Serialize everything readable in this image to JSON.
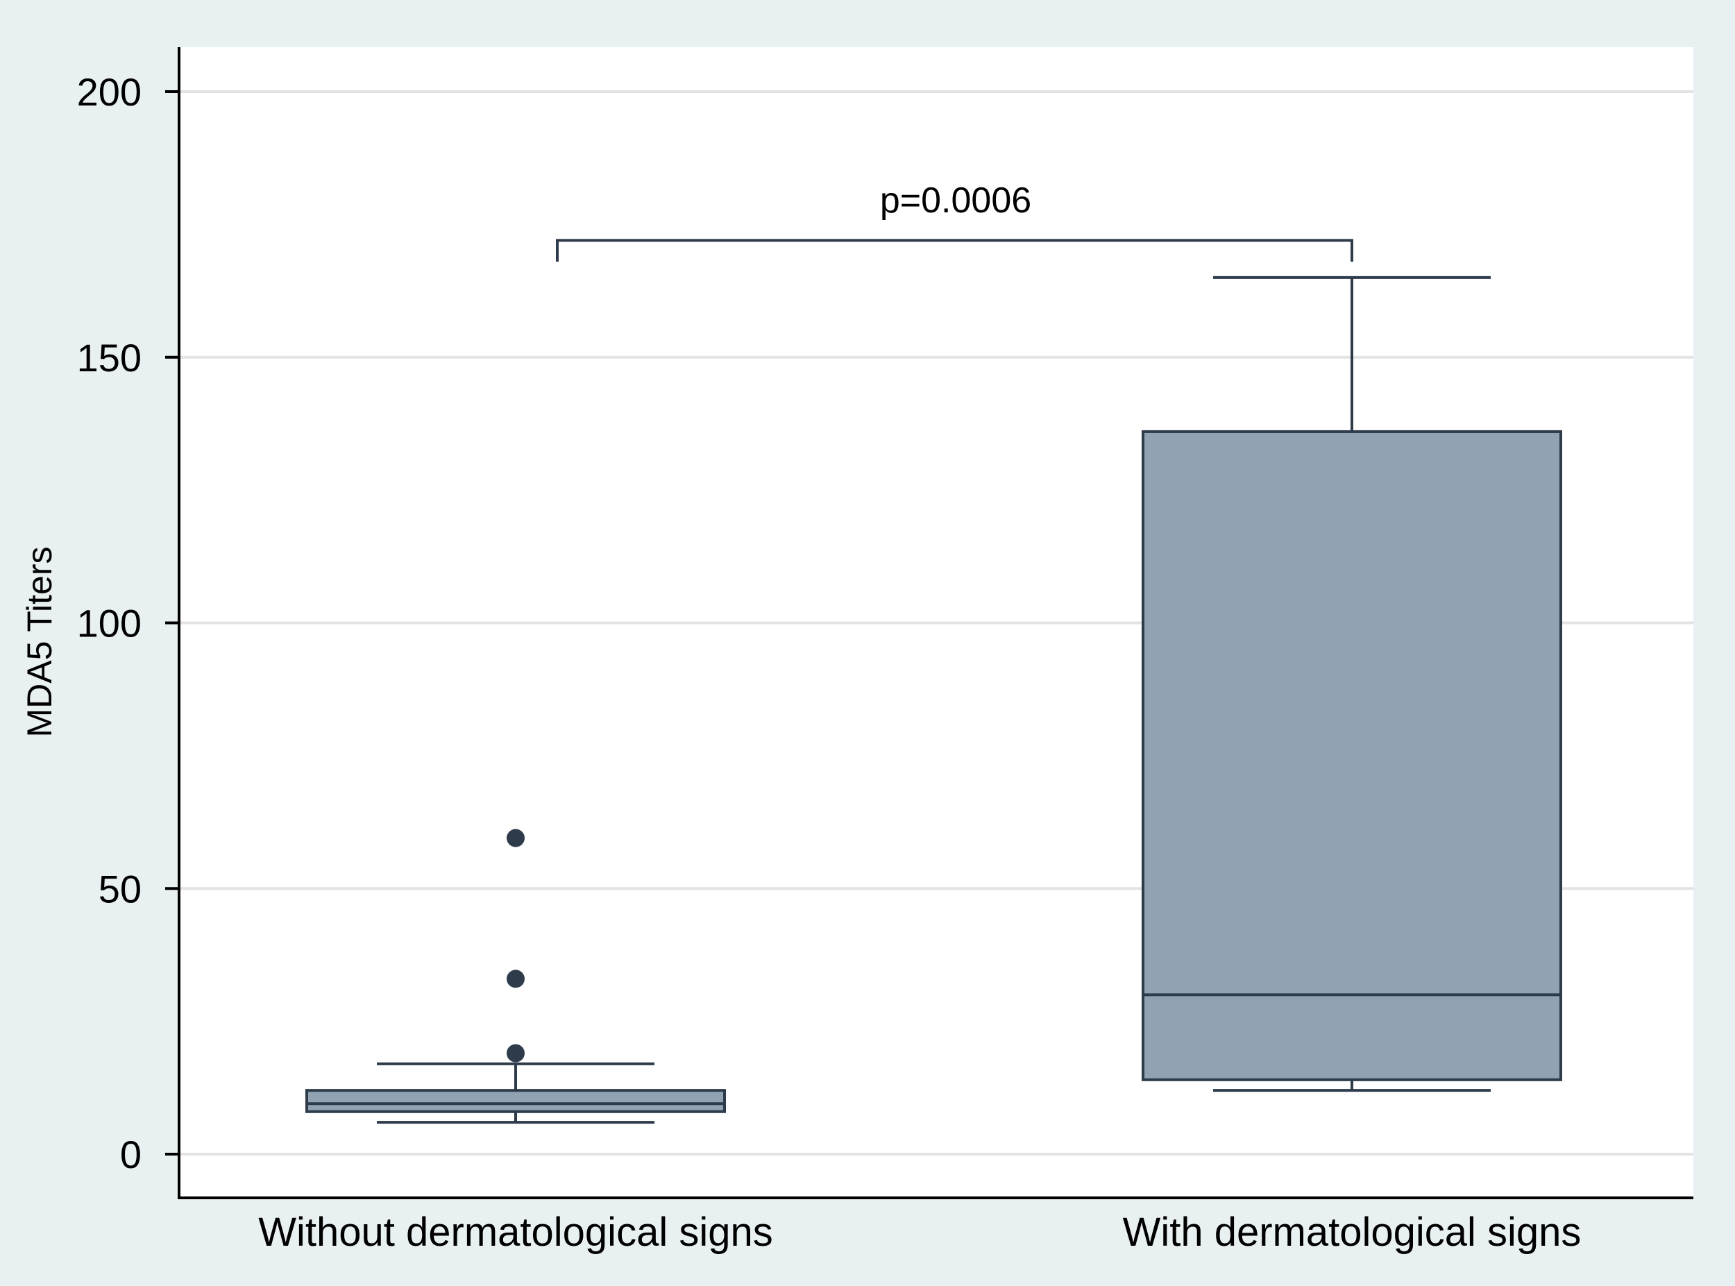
{
  "chart_data": {
    "type": "box",
    "title": "",
    "xlabel": "",
    "ylabel": "MDA5 Titers",
    "ylim": [
      0,
      200
    ],
    "yticks": [
      0,
      50,
      100,
      150,
      200
    ],
    "grid": true,
    "categories": [
      "Without dermatological signs",
      "With dermatological signs"
    ],
    "boxes": [
      {
        "category": "Without dermatological signs",
        "whisker_low": 6,
        "q1": 8,
        "median": 9.5,
        "q3": 12,
        "whisker_high": 17,
        "outliers": [
          19,
          33,
          59.5
        ]
      },
      {
        "category": "With dermatological signs",
        "whisker_low": 12,
        "q1": 14,
        "median": 30,
        "q3": 136,
        "whisker_high": 165,
        "outliers": []
      }
    ],
    "annotation": {
      "text": "p=0.0006",
      "bracket_y": 172,
      "bracket_drop_to": 168
    },
    "colors": {
      "box_fill": "#91a2b3",
      "line": "#2e3b4a",
      "grid": "#e3e3e3",
      "outer_background": "#e9f0f2",
      "plot_background": "#ffffff"
    }
  }
}
